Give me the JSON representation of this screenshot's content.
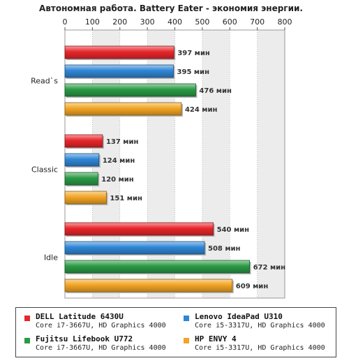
{
  "chart_data": {
    "type": "bar",
    "orientation": "horizontal",
    "title": "Автономная работа. Battery Eater - экономия энергии.",
    "xlim": [
      0,
      800
    ],
    "xticks": [
      0,
      100,
      200,
      300,
      400,
      500,
      600,
      700,
      800
    ],
    "grid": true,
    "unit": "мин",
    "categories": [
      "Read`s",
      "Classic",
      "Idle"
    ],
    "series": [
      {
        "name": "DELL Latitude 6430U",
        "color": "#e8262a",
        "values": [
          397,
          137,
          540
        ]
      },
      {
        "name": "Lenovo IdeaPad U310",
        "color": "#2f86d6",
        "values": [
          395,
          124,
          508
        ]
      },
      {
        "name": "Fujitsu Lifebook U772",
        "color": "#2a9a45",
        "values": [
          476,
          120,
          672
        ]
      },
      {
        "name": "HP ENVY 4",
        "color": "#f2a524",
        "values": [
          424,
          151,
          609
        ]
      }
    ]
  },
  "legend": [
    {
      "name": "DELL Latitude 6430U",
      "sub": "Core i7-3667U, HD Graphics 4000",
      "color": "#e8262a"
    },
    {
      "name": "Lenovo IdeaPad U310",
      "sub": "Core i5-3317U, HD Graphics 4000",
      "color": "#2f86d6"
    },
    {
      "name": "Fujitsu Lifebook U772",
      "sub": "Core i7-3667U, HD Graphics 4000",
      "color": "#2a9a45"
    },
    {
      "name": "HP ENVY 4",
      "sub": "Core i5-3317U, HD Graphics 4000",
      "color": "#f2a524"
    }
  ]
}
